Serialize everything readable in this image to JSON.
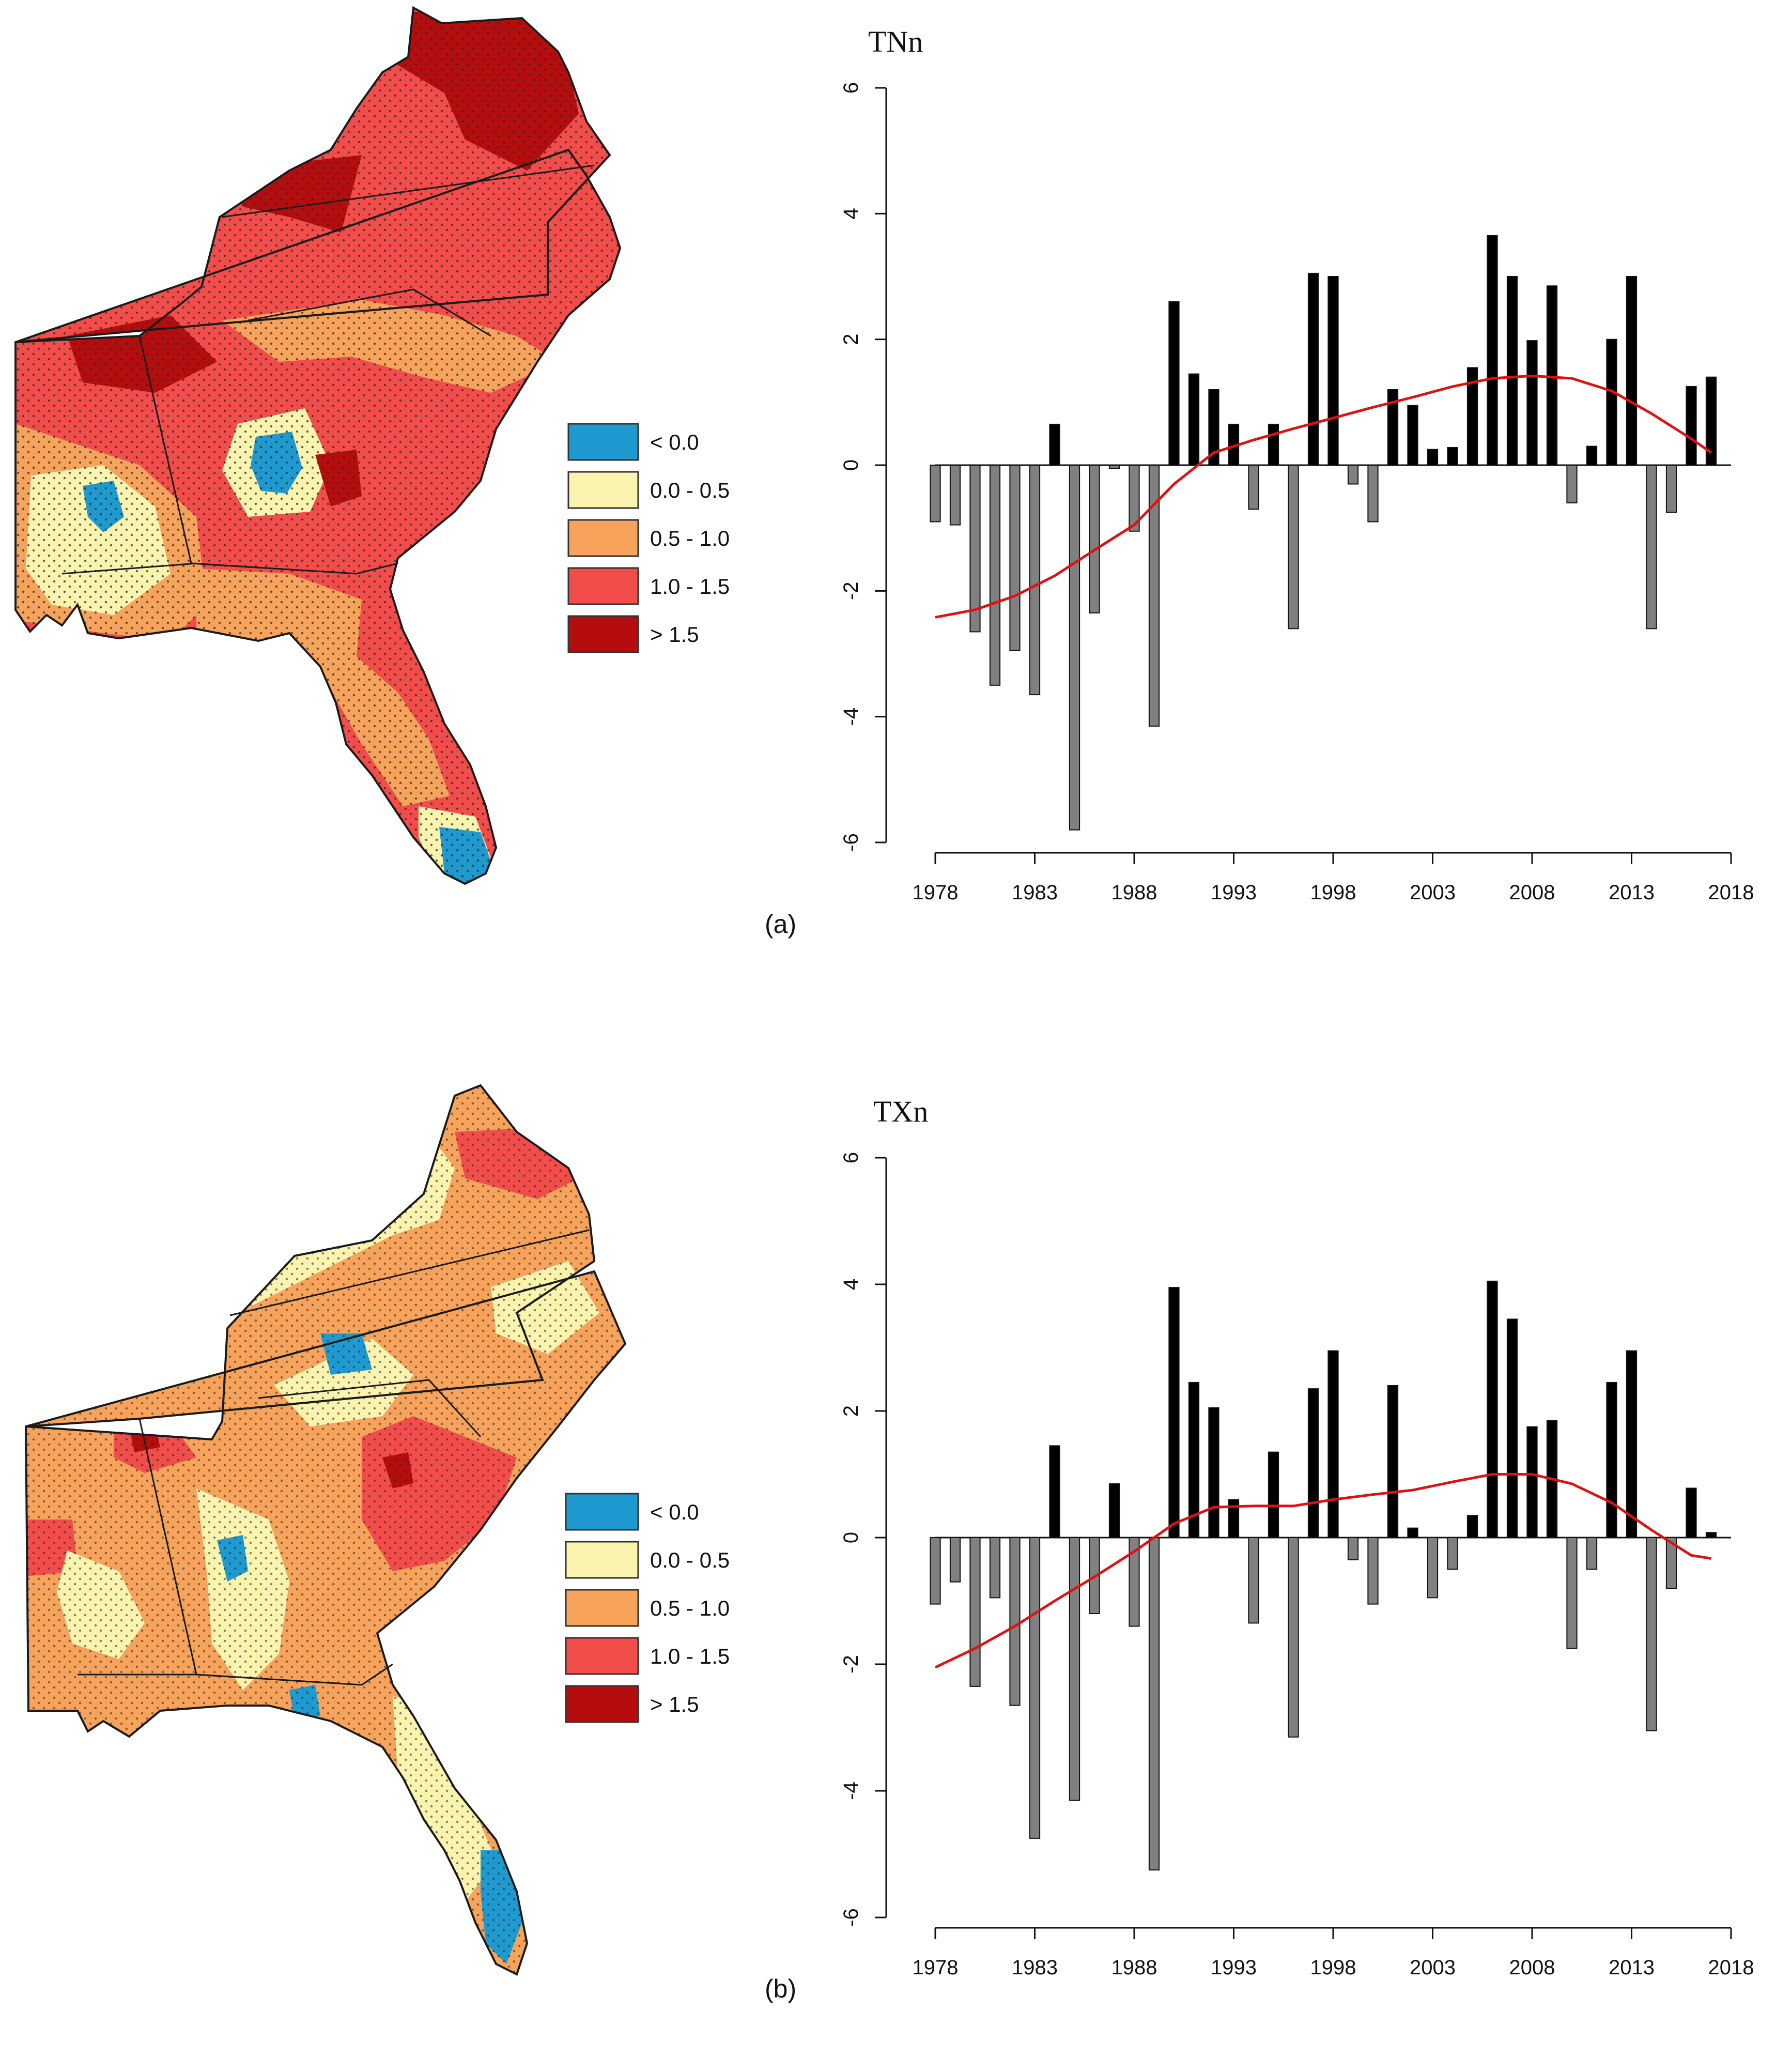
{
  "colors": {
    "neg": "#1e9ad0",
    "c0": "#fbf4ae",
    "c1": "#f7a35c",
    "c2": "#f24d4a",
    "c3": "#b50d0d",
    "bar_pos": "#000000",
    "bar_neg": "#808080",
    "trend": "#e01010"
  },
  "legend": [
    "< 0.0",
    "0.0 - 0.5",
    "0.5 - 1.0",
    "1.0 - 1.5",
    "> 1.5"
  ],
  "chart_data": [
    {
      "type": "bar",
      "panel_label": "(a)",
      "title": "TNn",
      "xlabel": "",
      "ylabel": "",
      "ylim": [
        -6,
        6
      ],
      "yticks": [
        "6",
        "4",
        "2",
        "0",
        "-2",
        "-4",
        "-6"
      ],
      "xticks": [
        "1978",
        "1983",
        "1988",
        "1993",
        "1998",
        "2003",
        "2008",
        "2013",
        "2018"
      ],
      "xlim": [
        1978,
        2018
      ],
      "years": [
        1978,
        1979,
        1980,
        1981,
        1982,
        1983,
        1984,
        1985,
        1986,
        1987,
        1988,
        1989,
        1990,
        1991,
        1992,
        1993,
        1994,
        1995,
        1996,
        1997,
        1998,
        1999,
        2000,
        2001,
        2002,
        2003,
        2004,
        2005,
        2006,
        2007,
        2008,
        2009,
        2010,
        2011,
        2012,
        2013,
        2014,
        2015,
        2016,
        2017
      ],
      "values": [
        -0.9,
        -0.95,
        -2.65,
        -3.5,
        -2.95,
        -3.65,
        0.65,
        -5.8,
        -2.35,
        -0.05,
        -1.05,
        -4.15,
        2.6,
        1.45,
        1.2,
        0.65,
        -0.7,
        0.65,
        -2.6,
        3.05,
        3.0,
        -0.3,
        -0.9,
        1.2,
        0.95,
        0.25,
        0.28,
        1.55,
        3.65,
        3.0,
        1.98,
        2.85,
        -0.6,
        0.3,
        2.0,
        3.0,
        -2.6,
        -0.75,
        1.25,
        1.4
      ],
      "trend": [
        [
          1978,
          -2.42
        ],
        [
          1980,
          -2.3
        ],
        [
          1982,
          -2.08
        ],
        [
          1984,
          -1.76
        ],
        [
          1986,
          -1.35
        ],
        [
          1988,
          -0.95
        ],
        [
          1990,
          -0.3
        ],
        [
          1992,
          0.2
        ],
        [
          1994,
          0.4
        ],
        [
          1996,
          0.58
        ],
        [
          1998,
          0.75
        ],
        [
          2000,
          0.92
        ],
        [
          2002,
          1.08
        ],
        [
          2004,
          1.25
        ],
        [
          2006,
          1.38
        ],
        [
          2008,
          1.42
        ],
        [
          2010,
          1.38
        ],
        [
          2012,
          1.18
        ],
        [
          2014,
          0.82
        ],
        [
          2016,
          0.42
        ],
        [
          2017,
          0.2
        ]
      ]
    },
    {
      "type": "bar",
      "panel_label": "(b)",
      "title": "TXn",
      "xlabel": "",
      "ylabel": "",
      "ylim": [
        -6,
        6
      ],
      "yticks": [
        "6",
        "4",
        "2",
        "0",
        "-2",
        "-4",
        "-6"
      ],
      "xticks": [
        "1978",
        "1983",
        "1988",
        "1993",
        "1998",
        "2003",
        "2008",
        "2013",
        "2018"
      ],
      "xlim": [
        1978,
        2018
      ],
      "years": [
        1978,
        1979,
        1980,
        1981,
        1982,
        1983,
        1984,
        1985,
        1986,
        1987,
        1988,
        1989,
        1990,
        1991,
        1992,
        1993,
        1994,
        1995,
        1996,
        1997,
        1998,
        1999,
        2000,
        2001,
        2002,
        2003,
        2004,
        2005,
        2006,
        2007,
        2008,
        2009,
        2010,
        2011,
        2012,
        2013,
        2014,
        2015,
        2016,
        2017
      ],
      "values": [
        -1.05,
        -0.7,
        -2.35,
        -0.95,
        -2.65,
        -4.75,
        1.45,
        -4.15,
        -1.2,
        0.85,
        -1.4,
        -5.25,
        3.95,
        2.45,
        2.05,
        0.6,
        -1.35,
        1.35,
        -3.15,
        2.35,
        2.95,
        -0.35,
        -1.05,
        2.4,
        0.15,
        -0.95,
        -0.5,
        0.35,
        4.05,
        3.45,
        1.75,
        1.85,
        -1.75,
        -0.5,
        2.45,
        2.95,
        -3.05,
        -0.8,
        0.78,
        0.08
      ],
      "trend": [
        [
          1978,
          -2.05
        ],
        [
          1980,
          -1.75
        ],
        [
          1982,
          -1.4
        ],
        [
          1984,
          -1.0
        ],
        [
          1986,
          -0.62
        ],
        [
          1988,
          -0.22
        ],
        [
          1990,
          0.22
        ],
        [
          1992,
          0.48
        ],
        [
          1994,
          0.5
        ],
        [
          1996,
          0.5
        ],
        [
          1998,
          0.6
        ],
        [
          2000,
          0.68
        ],
        [
          2002,
          0.75
        ],
        [
          2004,
          0.88
        ],
        [
          2006,
          1.0
        ],
        [
          2008,
          1.0
        ],
        [
          2010,
          0.85
        ],
        [
          2012,
          0.55
        ],
        [
          2014,
          0.12
        ],
        [
          2016,
          -0.28
        ],
        [
          2017,
          -0.33
        ]
      ]
    }
  ]
}
